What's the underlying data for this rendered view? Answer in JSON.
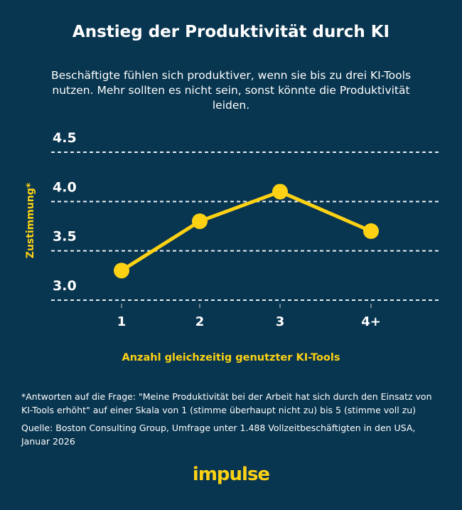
{
  "title": "Anstieg der Produktivität durch KI",
  "subtitle": "Beschäftigte fühlen sich produktiver, wenn sie bis zu drei KI-Tools nutzen. Mehr sollten es nicht sein, sonst könnte die Produktivität leiden.",
  "footnote": "*Antworten auf die Frage: \"Meine Produktivität bei der Arbeit hat sich durch den Einsatz von KI-Tools erhöht\" auf einer Skala von 1 (stimme überhaupt nicht zu) bis 5 (stimme voll zu)",
  "source": "Quelle: Boston Consulting Group, Umfrage unter 1.488 Vollzeitbeschäftigten in den USA, Januar 2026",
  "logo": "impulse",
  "colors": {
    "background": "#08354f",
    "line": "#fdd215",
    "text": "#ffffff"
  },
  "chart_data": {
    "type": "line",
    "categories": [
      "1",
      "2",
      "3",
      "4+"
    ],
    "values": [
      3.3,
      3.8,
      4.1,
      3.7
    ],
    "xlabel": "Anzahl gleichzeitig genutzter KI-Tools",
    "ylabel": "Zustimmung*",
    "ylim": [
      3.0,
      4.5
    ],
    "yticks": [
      "3.0",
      "3.5",
      "4.0",
      "4.5"
    ],
    "grid": true
  }
}
